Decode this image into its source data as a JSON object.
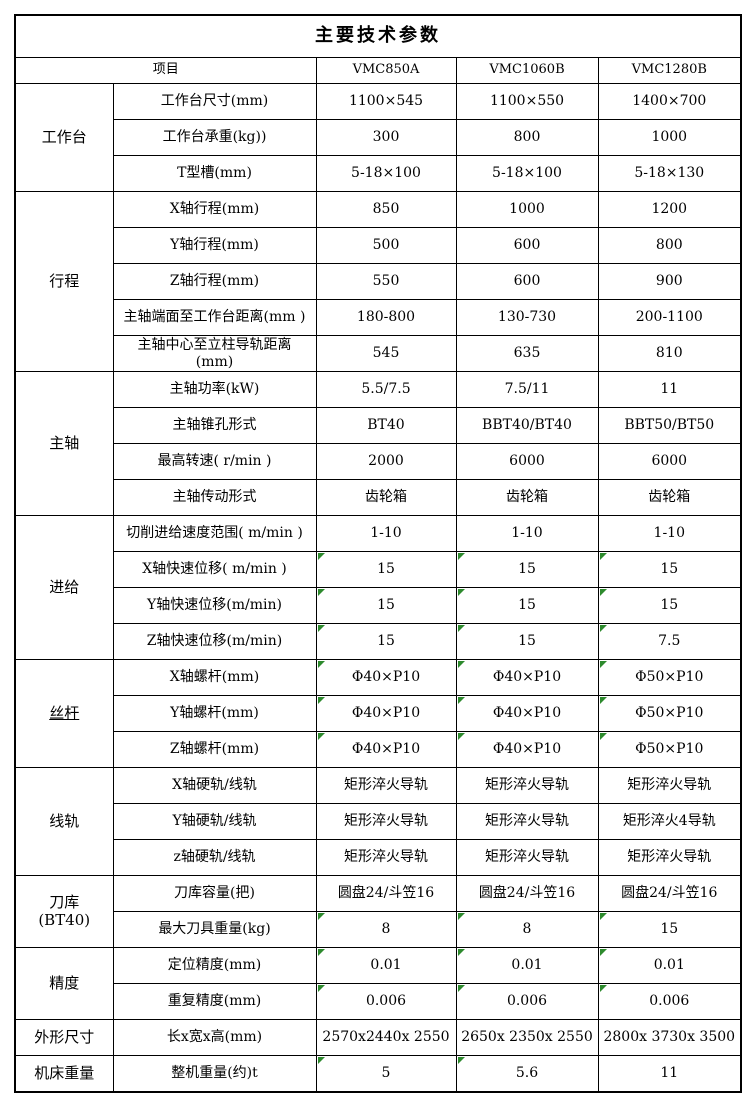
{
  "title": "主要技术参数",
  "header": {
    "item_label": "项目",
    "models": [
      "VMC850A",
      "VMC1060B",
      "VMC1280B"
    ]
  },
  "colors": {
    "flag_triangle": "#2d8a2d",
    "border": "#000000",
    "text": "#000000",
    "background": "#ffffff"
  },
  "groups": [
    {
      "label": "工作台",
      "rows": [
        {
          "param": "工作台尺寸(mm)",
          "values": [
            "1100×545",
            "1100×550",
            "1400×700"
          ]
        },
        {
          "param": "工作台承重(kg))",
          "values": [
            "300",
            "800",
            "1000"
          ]
        },
        {
          "param": "T型槽(mm)",
          "values": [
            "5-18×100",
            "5-18×100",
            "5-18×130"
          ]
        }
      ]
    },
    {
      "label": "行程",
      "rows": [
        {
          "param": "X轴行程(mm)",
          "values": [
            "850",
            "1000",
            "1200"
          ]
        },
        {
          "param": "Y轴行程(mm)",
          "values": [
            "500",
            "600",
            "800"
          ]
        },
        {
          "param": "Z轴行程(mm)",
          "values": [
            "550",
            "600",
            "900"
          ]
        },
        {
          "param": "主轴端面至工作台距离(mm )",
          "values": [
            "180-800",
            "130-730",
            "200-1100"
          ]
        },
        {
          "param": "主轴中心至立柱导轨距离\n(mm)",
          "values": [
            "545",
            "635",
            "810"
          ]
        }
      ]
    },
    {
      "label": "主轴",
      "rows": [
        {
          "param": "主轴功率(kW)",
          "values": [
            "5.5/7.5",
            "7.5/11",
            "11"
          ]
        },
        {
          "param": "主轴锥孔形式",
          "values": [
            "BT40",
            "BBT40/BT40",
            "BBT50/BT50"
          ]
        },
        {
          "param": "最高转速( r/min )",
          "values": [
            "2000",
            "6000",
            "6000"
          ]
        },
        {
          "param": "主轴传动形式",
          "values": [
            "齿轮箱",
            "齿轮箱",
            "齿轮箱"
          ]
        }
      ]
    },
    {
      "label": "进给",
      "rows": [
        {
          "param": "切削进给速度范围( m/min )",
          "values": [
            "1-10",
            "1-10",
            "1-10"
          ]
        },
        {
          "param": "X轴快速位移( m/min )",
          "values": [
            "15",
            "15",
            "15"
          ],
          "marks": [
            true,
            true,
            true
          ]
        },
        {
          "param": "Y轴快速位移(m/min)",
          "values": [
            "15",
            "15",
            "15"
          ],
          "marks": [
            true,
            true,
            true
          ]
        },
        {
          "param": "Z轴快速位移(m/min)",
          "values": [
            "15",
            "15",
            "7.5"
          ],
          "marks": [
            true,
            true,
            true
          ]
        }
      ]
    },
    {
      "label": "丝杆",
      "underline": true,
      "rows": [
        {
          "param": "X轴螺杆(mm)",
          "values": [
            "Φ40×P10",
            "Φ40×P10",
            "Φ50×P10"
          ],
          "marks": [
            true,
            true,
            true
          ]
        },
        {
          "param": "Y轴螺杆(mm)",
          "values": [
            "Φ40×P10",
            "Φ40×P10",
            "Φ50×P10"
          ],
          "marks": [
            true,
            true,
            true
          ]
        },
        {
          "param": "Z轴螺杆(mm)",
          "values": [
            "Φ40×P10",
            "Φ40×P10",
            "Φ50×P10"
          ],
          "marks": [
            true,
            true,
            true
          ]
        }
      ]
    },
    {
      "label": "线轨",
      "rows": [
        {
          "param": "X轴硬轨/线轨",
          "values": [
            "矩形淬火导轨",
            "矩形淬火导轨",
            "矩形淬火导轨"
          ]
        },
        {
          "param": "Y轴硬轨/线轨",
          "values": [
            "矩形淬火导轨",
            "矩形淬火导轨",
            "矩形淬火4导轨"
          ]
        },
        {
          "param": "z轴硬轨/线轨",
          "values": [
            "矩形淬火导轨",
            "矩形淬火导轨",
            "矩形淬火导轨"
          ]
        }
      ]
    },
    {
      "label": "刀库\n(BT40)",
      "rows": [
        {
          "param": "刀库容量(把)",
          "values": [
            "圆盘24/斗笠16",
            "圆盘24/斗笠16",
            "圆盘24/斗笠16"
          ]
        },
        {
          "param": "最大刀具重量(kg)",
          "values": [
            "8",
            "8",
            "15"
          ],
          "marks": [
            true,
            true,
            true
          ]
        }
      ]
    },
    {
      "label": "精度",
      "rows": [
        {
          "param": "定位精度(mm)",
          "values": [
            "0.01",
            "0.01",
            "0.01"
          ],
          "marks": [
            true,
            true,
            true
          ]
        },
        {
          "param": "重复精度(mm)",
          "values": [
            "0.006",
            "0.006",
            "0.006"
          ],
          "marks": [
            true,
            true,
            true
          ]
        }
      ]
    },
    {
      "label": "外形尺寸",
      "rows": [
        {
          "param": "长x宽x高(mm)",
          "values": [
            "2570x2440x 2550",
            "2650x 2350x 2550",
            "2800x 3730x 3500"
          ]
        }
      ]
    },
    {
      "label": "机床重量",
      "rows": [
        {
          "param": "整机重量(约)t",
          "values": [
            "5",
            "5.6",
            "11"
          ],
          "marks": [
            true,
            true,
            false
          ]
        }
      ]
    }
  ]
}
